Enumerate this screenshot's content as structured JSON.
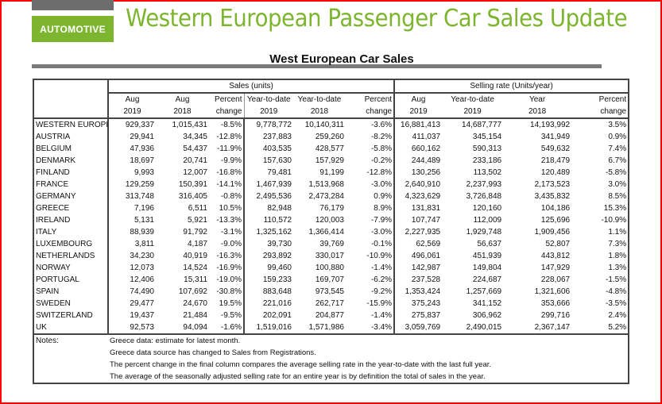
{
  "header": {
    "badge": "AUTOMOTIVE",
    "title": "Western European Passenger Car Sales Update"
  },
  "table_title": "West European Car Sales",
  "groups": {
    "sales": "Sales (units)",
    "rate": "Selling rate (Units/year)"
  },
  "columns": [
    [
      "Aug",
      "2019"
    ],
    [
      "Aug",
      "2018"
    ],
    [
      "Percent",
      "change"
    ],
    [
      "Year-to-date",
      "2019"
    ],
    [
      "Year-to-date",
      "2018"
    ],
    [
      "Percent",
      "change"
    ],
    [
      "Aug",
      "2019"
    ],
    [
      "Year-to-date",
      "2019"
    ],
    [
      "Year",
      "2018"
    ],
    [
      "Percent",
      "change"
    ]
  ],
  "rows": [
    [
      "WESTERN EUROPE",
      "929,337",
      "1,015,431",
      "-8.5%",
      "9,778,772",
      "10,140,311",
      "-3.6%",
      "16,881,413",
      "14,687,777",
      "14,193,992",
      "3.5%"
    ],
    [
      "AUSTRIA",
      "29,941",
      "34,345",
      "-12.8%",
      "237,883",
      "259,260",
      "-8.2%",
      "411,037",
      "345,154",
      "341,949",
      "0.9%"
    ],
    [
      "BELGIUM",
      "47,936",
      "54,437",
      "-11.9%",
      "403,535",
      "428,577",
      "-5.8%",
      "660,162",
      "590,313",
      "549,632",
      "7.4%"
    ],
    [
      "DENMARK",
      "18,697",
      "20,741",
      "-9.9%",
      "157,630",
      "157,929",
      "-0.2%",
      "244,489",
      "233,186",
      "218,479",
      "6.7%"
    ],
    [
      "FINLAND",
      "9,993",
      "12,007",
      "-16.8%",
      "79,481",
      "91,199",
      "-12.8%",
      "130,256",
      "113,502",
      "120,489",
      "-5.8%"
    ],
    [
      "FRANCE",
      "129,259",
      "150,391",
      "-14.1%",
      "1,467,939",
      "1,513,968",
      "-3.0%",
      "2,640,910",
      "2,237,993",
      "2,173,523",
      "3.0%"
    ],
    [
      "GERMANY",
      "313,748",
      "316,405",
      "-0.8%",
      "2,495,536",
      "2,473,284",
      "0.9%",
      "4,323,629",
      "3,726,848",
      "3,435,832",
      "8.5%"
    ],
    [
      "GREECE",
      "7,196",
      "6,511",
      "10.5%",
      "82,948",
      "76,179",
      "8.9%",
      "131,831",
      "120,160",
      "104,186",
      "15.3%"
    ],
    [
      "IRELAND",
      "5,131",
      "5,921",
      "-13.3%",
      "110,572",
      "120,003",
      "-7.9%",
      "107,747",
      "112,009",
      "125,696",
      "-10.9%"
    ],
    [
      "ITALY",
      "88,939",
      "91,792",
      "-3.1%",
      "1,325,162",
      "1,366,414",
      "-3.0%",
      "2,227,935",
      "1,929,748",
      "1,909,456",
      "1.1%"
    ],
    [
      "LUXEMBOURG",
      "3,811",
      "4,187",
      "-9.0%",
      "39,730",
      "39,769",
      "-0.1%",
      "62,569",
      "56,637",
      "52,807",
      "7.3%"
    ],
    [
      "NETHERLANDS",
      "34,230",
      "40,919",
      "-16.3%",
      "293,892",
      "330,017",
      "-10.9%",
      "496,061",
      "451,939",
      "443,812",
      "1.8%"
    ],
    [
      "NORWAY",
      "12,073",
      "14,524",
      "-16.9%",
      "99,460",
      "100,880",
      "-1.4%",
      "142,987",
      "149,804",
      "147,929",
      "1.3%"
    ],
    [
      "PORTUGAL",
      "12,406",
      "15,311",
      "-19.0%",
      "159,233",
      "169,707",
      "-6.2%",
      "237,528",
      "224,687",
      "228,067",
      "-1.5%"
    ],
    [
      "SPAIN",
      "74,490",
      "107,692",
      "-30.8%",
      "883,648",
      "973,545",
      "-9.2%",
      "1,353,424",
      "1,257,669",
      "1,321,606",
      "-4.8%"
    ],
    [
      "SWEDEN",
      "29,477",
      "24,670",
      "19.5%",
      "221,016",
      "262,717",
      "-15.9%",
      "375,243",
      "341,152",
      "353,666",
      "-3.5%"
    ],
    [
      "SWITZERLAND",
      "19,437",
      "21,484",
      "-9.5%",
      "202,091",
      "204,877",
      "-1.4%",
      "275,837",
      "306,962",
      "299,716",
      "2.4%"
    ],
    [
      "UK",
      "92,573",
      "94,094",
      "-1.6%",
      "1,519,016",
      "1,571,986",
      "-3.4%",
      "3,059,769",
      "2,490,015",
      "2,367,147",
      "5.2%"
    ]
  ],
  "notes_label": "Notes:",
  "notes": [
    "Greece data: estimate for latest month.",
    "Greece data source has changed to Sales from Registrations.",
    "The percent change in the final column compares the average selling rate in the year-to-date with the last full year.",
    "The average of the seasonally adjusted selling rate for an entire year is by definition the total of sales in the year."
  ],
  "colors": {
    "brand_green": "#7db52f",
    "frame": "#ff0000"
  }
}
